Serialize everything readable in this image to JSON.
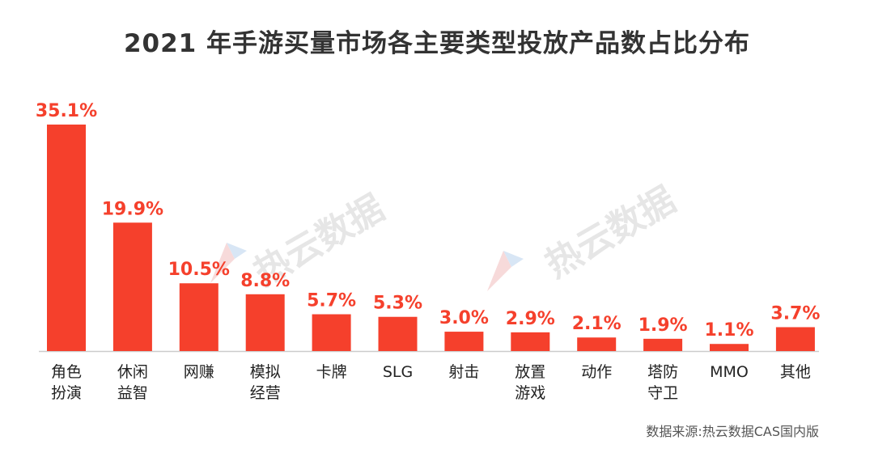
{
  "chart_data": {
    "type": "bar",
    "title": "2021 年手游买量市场各主要类型投放产品数占比分布",
    "categories": [
      [
        "角色",
        "扮演"
      ],
      [
        "休闲",
        "益智"
      ],
      [
        "网赚"
      ],
      [
        "模拟",
        "经营"
      ],
      [
        "卡牌"
      ],
      [
        "SLG"
      ],
      [
        "射击"
      ],
      [
        "放置",
        "游戏"
      ],
      [
        "动作"
      ],
      [
        "塔防",
        "守卫"
      ],
      [
        "MMO"
      ],
      [
        "其他"
      ]
    ],
    "values": [
      35.1,
      19.9,
      10.5,
      8.8,
      5.7,
      5.3,
      3.0,
      2.9,
      2.1,
      1.9,
      1.1,
      3.7
    ],
    "value_labels": [
      "35.1%",
      "19.9%",
      "10.5%",
      "8.8%",
      "5.7%",
      "5.3%",
      "3.0%",
      "2.9%",
      "2.1%",
      "1.9%",
      "1.1%",
      "3.7%"
    ],
    "ylim": [
      0,
      36
    ],
    "grid": false,
    "colors": {
      "bar": "#f5402c",
      "label": "#f5402c",
      "axis": "#cccccc"
    }
  },
  "source_text": "数据来源:热云数据CAS国内版",
  "watermarks": [
    "热云数据",
    "热云数据"
  ]
}
